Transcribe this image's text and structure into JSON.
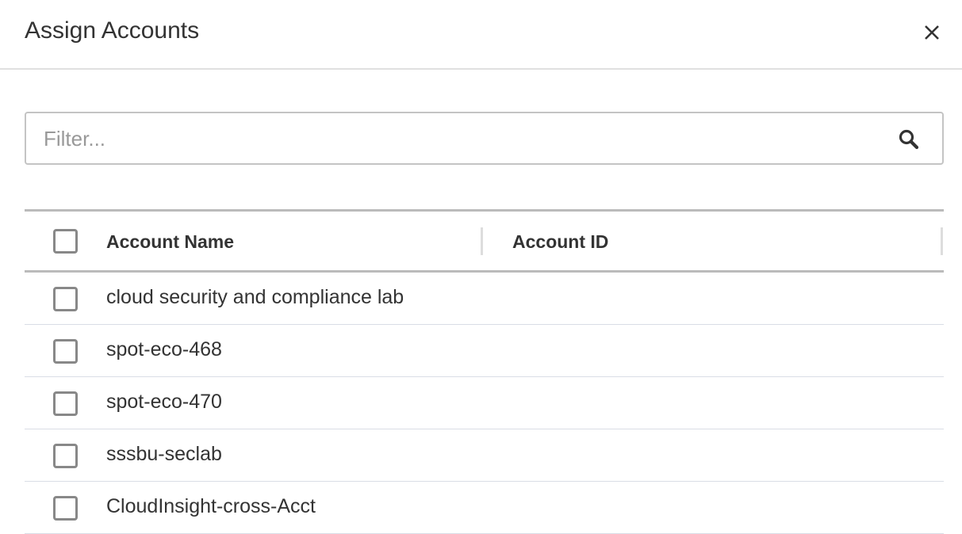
{
  "dialog": {
    "title": "Assign Accounts",
    "close_icon": "close-icon"
  },
  "filter": {
    "placeholder": "Filter...",
    "value": "",
    "icon": "search-icon"
  },
  "table": {
    "columns": [
      "Account Name",
      "Account ID"
    ],
    "rows": [
      {
        "name": "cloud security and compliance lab",
        "id": ""
      },
      {
        "name": "spot-eco-468",
        "id": ""
      },
      {
        "name": "spot-eco-470",
        "id": ""
      },
      {
        "name": "sssbu-seclab",
        "id": ""
      },
      {
        "name": "CloudInsight-cross-Acct",
        "id": ""
      }
    ]
  }
}
